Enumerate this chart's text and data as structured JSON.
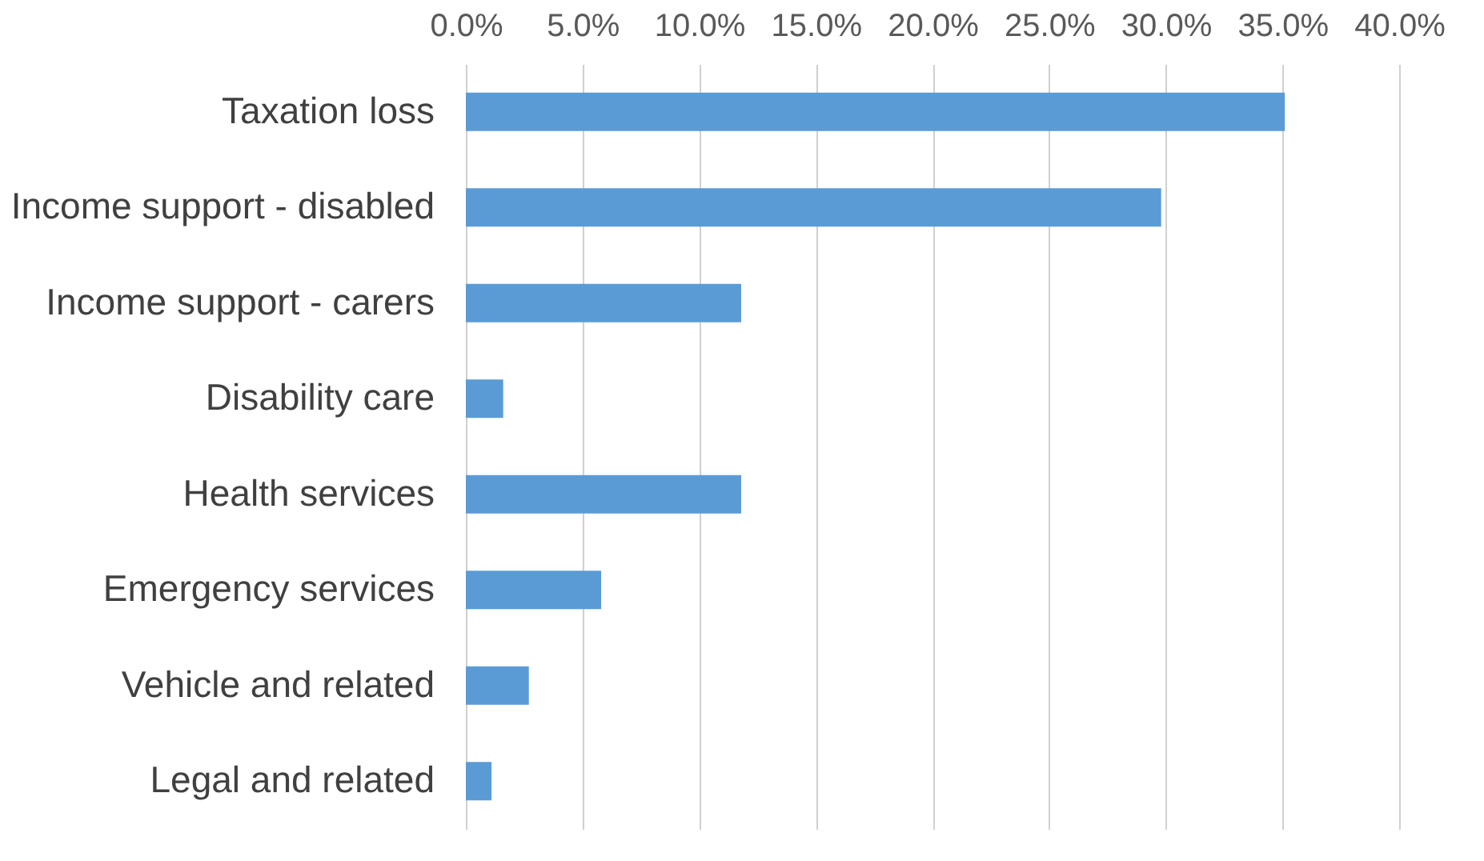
{
  "chart_data": {
    "type": "bar",
    "orientation": "horizontal",
    "categories": [
      "Taxation loss",
      "Income support - disabled",
      "Income support - carers",
      "Disability care",
      "Health services",
      "Emergency services",
      "Vehicle and related",
      "Legal and related"
    ],
    "values": [
      35.1,
      29.8,
      11.8,
      1.6,
      11.8,
      5.8,
      2.7,
      1.1
    ],
    "color": "#5b9bd5",
    "xlim": [
      0,
      40
    ],
    "xticks": [
      {
        "value": 0,
        "label": "0.0%"
      },
      {
        "value": 5,
        "label": "5.0%"
      },
      {
        "value": 10,
        "label": "10.0%"
      },
      {
        "value": 15,
        "label": "15.0%"
      },
      {
        "value": 20,
        "label": "20.0%"
      },
      {
        "value": 25,
        "label": "25.0%"
      },
      {
        "value": 30,
        "label": "30.0%"
      },
      {
        "value": 35,
        "label": "35.0%"
      },
      {
        "value": 40,
        "label": "40.0%"
      }
    ],
    "grid": "x"
  }
}
